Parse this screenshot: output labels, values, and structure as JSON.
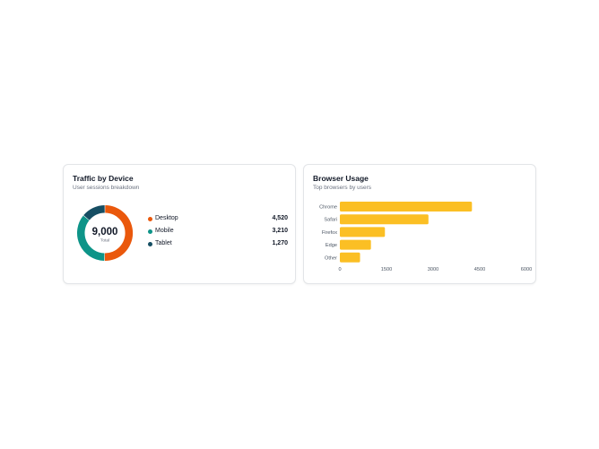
{
  "device_card": {
    "title": "Traffic by Device",
    "subtitle": "User sessions breakdown",
    "total_value": "9,000",
    "total_label": "Total",
    "legend": [
      {
        "label": "Desktop",
        "value": "4,520"
      },
      {
        "label": "Mobile",
        "value": "3,210"
      },
      {
        "label": "Tablet",
        "value": "1,270"
      }
    ]
  },
  "browser_card": {
    "title": "Browser Usage",
    "subtitle": "Top browsers by users"
  },
  "chart_data": [
    {
      "type": "pie",
      "variant": "donut",
      "categories": [
        "Desktop",
        "Mobile",
        "Tablet"
      ],
      "values": [
        4520,
        3210,
        1270
      ],
      "colors": [
        "#ea580c",
        "#0d9488",
        "#164e63"
      ],
      "legend_position": "right"
    },
    {
      "type": "bar",
      "orientation": "horizontal",
      "categories": [
        "Chrome",
        "Safari",
        "Firefox",
        "Edge",
        "Other"
      ],
      "values": [
        4250,
        2850,
        1450,
        1000,
        650
      ],
      "xlim": [
        0,
        6000
      ],
      "xticks": [
        "0",
        "1500",
        "3000",
        "4500",
        "6000"
      ],
      "color": "#fbbf24",
      "grid": false
    }
  ]
}
